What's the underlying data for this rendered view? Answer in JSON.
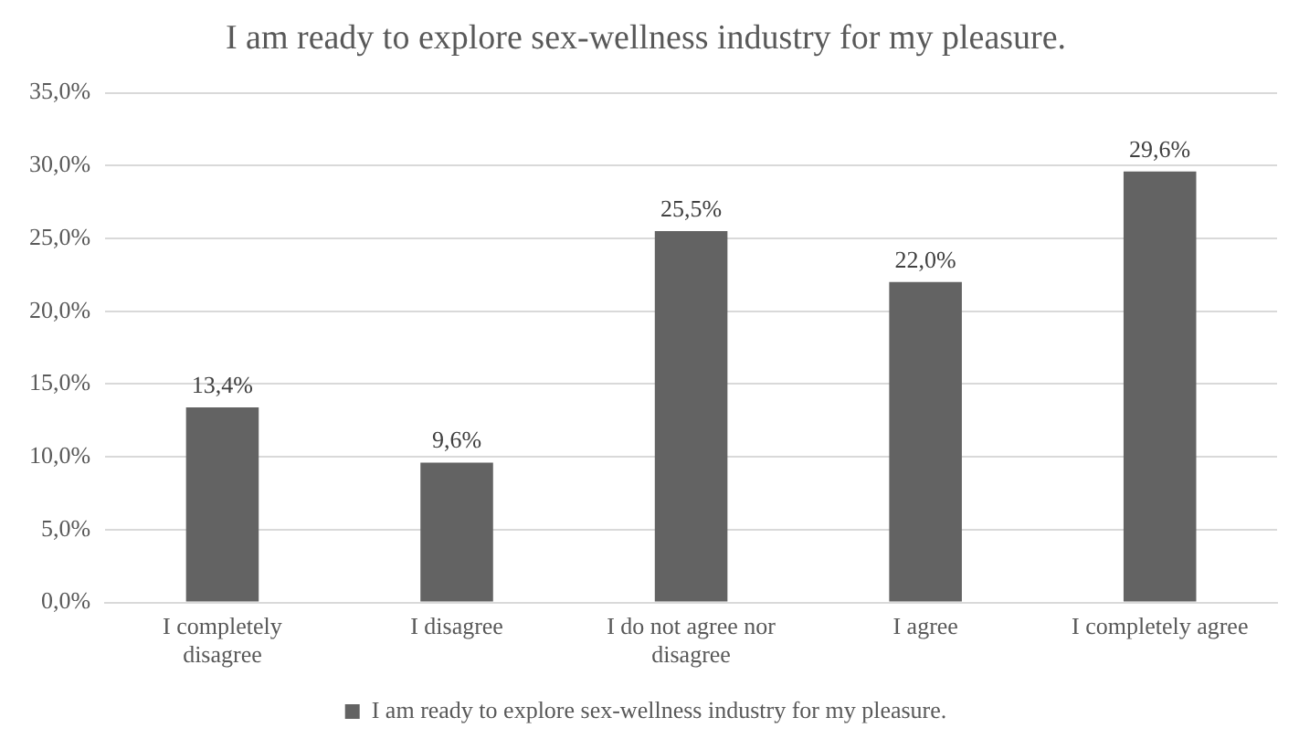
{
  "chart_data": {
    "type": "bar",
    "title": "I am ready to explore sex-wellness industry for my pleasure.",
    "categories": [
      "I completely disagree",
      "I disagree",
      "I do not agree nor disagree",
      "I agree",
      "I completely agree"
    ],
    "series": [
      {
        "name": "I am ready to explore sex-wellness industry for my pleasure.",
        "color": "#636363",
        "values": [
          13.4,
          9.6,
          25.5,
          22.0,
          29.6
        ],
        "value_labels": [
          "13,4%",
          "9,6%",
          "25,5%",
          "22,0%",
          "29,6%"
        ]
      }
    ],
    "ylim": [
      0,
      35
    ],
    "yticks": [
      {
        "value": 0,
        "label": "0,0%"
      },
      {
        "value": 5,
        "label": "5,0%"
      },
      {
        "value": 10,
        "label": "10,0%"
      },
      {
        "value": 15,
        "label": "15,0%"
      },
      {
        "value": 20,
        "label": "20,0%"
      },
      {
        "value": 25,
        "label": "25,0%"
      },
      {
        "value": 30,
        "label": "30,0%"
      },
      {
        "value": 35,
        "label": "35,0%"
      }
    ],
    "grid": "y",
    "legend": "bottom"
  }
}
